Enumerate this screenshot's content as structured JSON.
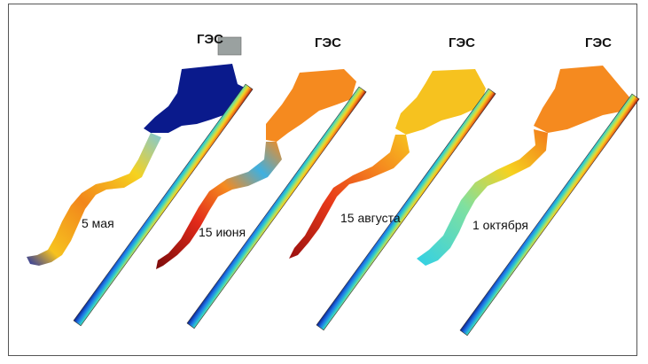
{
  "panels": [
    {
      "ges": "ГЭС",
      "date": "5 мая"
    },
    {
      "ges": "ГЭС",
      "date": "15 июня"
    },
    {
      "ges": "ГЭС",
      "date": "15 августа"
    },
    {
      "ges": "ГЭС",
      "date": "1 октября"
    }
  ],
  "colors": {
    "cold": "#0a1a8c",
    "cyan": "#22c8e6",
    "yellow": "#f6d21f",
    "orange": "#f58a1f",
    "red": "#e22a1a",
    "darkred": "#7a0a0a"
  }
}
